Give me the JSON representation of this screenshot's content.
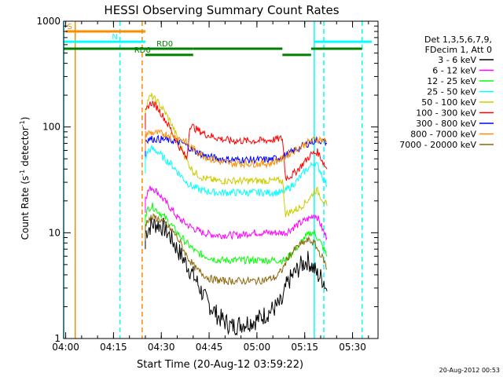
{
  "chart_data": {
    "type": "line",
    "title": "HESSI Observing Summary Count Rates",
    "xlabel": "Start Time (20-Aug-12 03:59:22)",
    "ylabel_parts": [
      "Count Rate (s",
      "-1",
      " detector",
      "-1",
      ")"
    ],
    "yscale": "log",
    "xlim": [
      "03:59:22",
      "05:38:00"
    ],
    "ylim": [
      1,
      1000
    ],
    "x_ticks": [
      "04:00",
      "04:15",
      "04:30",
      "04:45",
      "05:00",
      "05:15",
      "05:30"
    ],
    "y_ticks": [
      "1",
      "10",
      "100",
      "1000"
    ],
    "timestamp": "20-Aug-2012 00:53",
    "legend_header": [
      "Det 1,3,5,6,7,9,",
      "FDecim 1, Att 0"
    ],
    "data_gap": [
      "04:05",
      "04:25"
    ],
    "series": [
      {
        "name": "3 - 6 keV",
        "color": "#000000",
        "x": [
          "04:25",
          "04:26",
          "04:27",
          "04:29",
          "04:31",
          "04:33",
          "04:35",
          "04:38",
          "04:41",
          "04:44",
          "04:48",
          "04:52",
          "04:56",
          "05:00",
          "05:04",
          "05:08",
          "05:09",
          "05:10",
          "05:12",
          "05:14",
          "05:16",
          "05:18",
          "05:19",
          "05:20",
          "05:21",
          "05:22"
        ],
        "y": [
          10,
          11,
          12,
          12,
          11,
          9,
          7,
          5,
          3.5,
          2.3,
          1.6,
          1.3,
          1.4,
          1.5,
          1.8,
          2.2,
          3.0,
          3.5,
          4.2,
          5,
          5.5,
          4.5,
          4,
          3.8,
          3.5,
          2.8
        ]
      },
      {
        "name": "6 - 12 keV",
        "color": "#ff00ff",
        "x": [
          "04:25",
          "04:26",
          "04:27",
          "04:29",
          "04:31",
          "04:33",
          "04:35",
          "04:38",
          "04:40",
          "04:43",
          "04:47",
          "04:51",
          "04:55",
          "04:58",
          "05:01",
          "05:04",
          "05:08",
          "05:09",
          "05:11",
          "05:13",
          "05:15",
          "05:17",
          "05:18",
          "05:19",
          "05:20",
          "05:21",
          "05:22"
        ],
        "y": [
          22,
          25,
          27,
          24,
          20,
          17,
          14,
          12,
          11,
          10,
          9.5,
          9.5,
          9.5,
          10,
          10,
          10,
          10,
          10,
          11,
          12,
          13,
          14,
          15,
          14,
          12,
          10,
          9
        ]
      },
      {
        "name": "12 - 25 keV",
        "color": "#00ff00",
        "x": [
          "04:25",
          "04:26",
          "04:27",
          "04:29",
          "04:31",
          "04:33",
          "04:35",
          "04:38",
          "04:41",
          "04:44",
          "04:48",
          "04:52",
          "04:56",
          "05:00",
          "05:04",
          "05:08",
          "05:09",
          "05:11",
          "05:13",
          "05:15",
          "05:17",
          "05:18",
          "05:19",
          "05:20",
          "05:21",
          "05:22"
        ],
        "y": [
          15,
          17,
          18,
          16,
          14,
          12,
          10,
          8,
          6.5,
          6,
          5.5,
          5.5,
          5.5,
          5.5,
          5.5,
          5.5,
          5.5,
          6.5,
          7.5,
          9,
          10,
          10,
          9,
          8,
          7,
          6
        ]
      },
      {
        "name": "25 - 50 keV",
        "color": "#00ffff",
        "x": [
          "04:25",
          "04:26",
          "04:27",
          "04:29",
          "04:31",
          "04:33",
          "04:35",
          "04:38",
          "04:40",
          "04:43",
          "04:47",
          "04:51",
          "04:55",
          "04:58",
          "05:01",
          "05:04",
          "05:08",
          "05:09",
          "05:11",
          "05:13",
          "05:15",
          "05:17",
          "05:18",
          "05:19",
          "05:20",
          "05:21",
          "05:22"
        ],
        "y": [
          52,
          60,
          62,
          58,
          50,
          45,
          38,
          30,
          27,
          25,
          24,
          24,
          24,
          24,
          24,
          24,
          24,
          25,
          28,
          32,
          38,
          43,
          47,
          43,
          38,
          32,
          28
        ]
      },
      {
        "name": "50 - 100 keV",
        "color": "#cccc00",
        "x": [
          "04:25",
          "04:26",
          "04:27",
          "04:29",
          "04:31",
          "04:33",
          "04:35",
          "04:38",
          "04:40",
          "04:43",
          "04:47",
          "04:51",
          "04:55",
          "04:58",
          "05:01",
          "05:04",
          "05:08",
          "05:09",
          "05:11",
          "05:13",
          "05:15",
          "05:17",
          "05:18",
          "05:19",
          "05:20",
          "05:21",
          "05:22"
        ],
        "y": [
          150,
          185,
          195,
          170,
          140,
          110,
          80,
          48,
          38,
          33,
          31,
          31,
          31,
          31,
          31,
          31,
          31,
          15,
          16,
          17,
          19,
          22,
          25,
          25,
          22,
          20,
          18
        ]
      },
      {
        "name": "100 - 300 keV",
        "color": "#ff0000",
        "x": [
          "04:25",
          "04:26",
          "04:27",
          "04:29",
          "04:31",
          "04:33",
          "04:35",
          "04:38",
          "04:39",
          "04:41",
          "04:44",
          "04:48",
          "04:52",
          "04:56",
          "05:00",
          "05:04",
          "05:08",
          "05:09",
          "05:11",
          "05:13",
          "05:15",
          "05:17",
          "05:19",
          "05:20",
          "05:21",
          "05:22"
        ],
        "y": [
          135,
          160,
          170,
          150,
          120,
          95,
          70,
          50,
          105,
          95,
          85,
          78,
          74,
          74,
          74,
          75,
          78,
          33,
          35,
          40,
          47,
          55,
          58,
          52,
          45,
          40
        ]
      },
      {
        "name": "300 - 800 keV",
        "color": "#0000ff",
        "x": [
          "04:25",
          "04:26",
          "04:28",
          "04:31",
          "04:34",
          "04:37",
          "04:40",
          "04:44",
          "04:48",
          "04:52",
          "04:56",
          "05:00",
          "05:04",
          "05:08",
          "05:11",
          "05:14",
          "05:17",
          "05:19",
          "05:21",
          "05:22"
        ],
        "y": [
          75,
          77,
          77,
          76,
          74,
          70,
          60,
          53,
          50,
          49,
          49,
          49,
          49,
          52,
          58,
          65,
          72,
          75,
          73,
          70
        ]
      },
      {
        "name": "800 - 7000 keV",
        "color": "#ff8c00",
        "x": [
          "04:25",
          "04:26",
          "04:28",
          "04:31",
          "04:34",
          "04:37",
          "04:40",
          "04:44",
          "04:48",
          "04:52",
          "04:56",
          "05:00",
          "05:04",
          "05:08",
          "05:11",
          "05:14",
          "05:17",
          "05:19",
          "05:21",
          "05:22"
        ],
        "y": [
          85,
          88,
          88,
          86,
          82,
          75,
          62,
          52,
          47,
          45,
          45,
          45,
          45,
          50,
          58,
          66,
          74,
          77,
          75,
          72
        ]
      },
      {
        "name": "7000 - 20000 keV",
        "color": "#8b6508",
        "x": [
          "04:25",
          "04:26",
          "04:28",
          "04:30",
          "04:32",
          "04:34",
          "04:36",
          "04:38",
          "04:41",
          "04:45",
          "04:49",
          "04:53",
          "04:57",
          "05:00",
          "05:03",
          "05:06",
          "05:08",
          "05:10",
          "05:13",
          "05:16",
          "05:18",
          "05:19",
          "05:21",
          "05:22"
        ],
        "y": [
          12,
          13.5,
          14,
          13,
          11.5,
          10,
          8,
          6,
          4.5,
          3.7,
          3.5,
          3.5,
          3.5,
          3.5,
          3.6,
          3.8,
          4.5,
          6,
          7.5,
          8.5,
          8,
          7,
          5.5,
          4.5
        ]
      }
    ],
    "annotations": [
      {
        "label": "S",
        "color": "#ff8c00",
        "text_at": "04:00",
        "level": 800,
        "segments": [
          [
            "04:00",
            "04:25"
          ]
        ]
      },
      {
        "label": "N",
        "color": "#00ffff",
        "text_at": "04:14",
        "level": 640,
        "segments": [
          [
            "03:59:22",
            "04:25"
          ],
          [
            "05:18",
            "05:36"
          ]
        ]
      },
      {
        "label": "RD0",
        "color": "#008000",
        "text_at": "04:28",
        "level": 550,
        "segments": [
          [
            "03:59:22",
            "04:40"
          ],
          [
            "04:40",
            "05:08"
          ],
          [
            "05:17",
            "05:33"
          ]
        ]
      },
      {
        "label": "RD6",
        "color": "#008000",
        "text_at": "04:21",
        "level": 480,
        "segments": [
          [
            "04:25",
            "04:40"
          ],
          [
            "05:08",
            "05:17"
          ]
        ]
      }
    ],
    "vlines": [
      {
        "x": "03:59:22",
        "color": "#00ffff",
        "style": "solid"
      },
      {
        "x": "04:03",
        "color": "#ff8c00",
        "style": "solid"
      },
      {
        "x": "04:17",
        "color": "#00ffff",
        "style": "dashed"
      },
      {
        "x": "04:24",
        "color": "#ff8c00",
        "style": "dashed"
      },
      {
        "x": "05:18",
        "color": "#00ffff",
        "style": "solid"
      },
      {
        "x": "05:21",
        "color": "#00ffff",
        "style": "dashed"
      },
      {
        "x": "05:33",
        "color": "#00ffff",
        "style": "dashed"
      }
    ]
  }
}
